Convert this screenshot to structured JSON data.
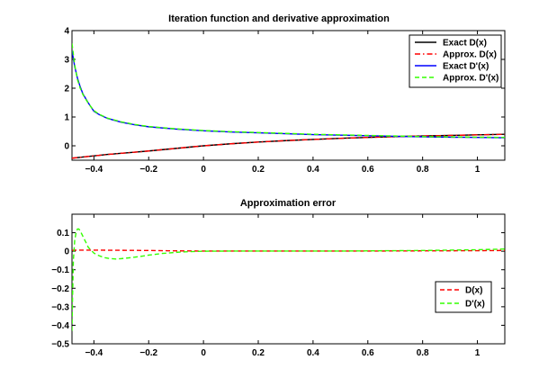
{
  "chart_data": [
    {
      "type": "line",
      "title": "Iteration function and derivative approximation",
      "xlabel": "",
      "ylabel": "",
      "xlim": [
        -0.48,
        1.1
      ],
      "ylim": [
        -0.5,
        4
      ],
      "x_ticks": [
        -0.4,
        -0.2,
        0,
        0.2,
        0.4,
        0.6,
        0.8,
        1
      ],
      "x_tick_labels": [
        "−0.4",
        "−0.2",
        "0",
        "0.2",
        "0.4",
        "0.6",
        "0.8",
        "1"
      ],
      "y_ticks": [
        0,
        1,
        2,
        3,
        4
      ],
      "y_tick_labels": [
        "0",
        "1",
        "2",
        "3",
        "4"
      ],
      "grid": false,
      "legend_position": "top-right",
      "x": [
        -0.48,
        -0.47,
        -0.46,
        -0.45,
        -0.44,
        -0.42,
        -0.4,
        -0.38,
        -0.35,
        -0.3,
        -0.25,
        -0.2,
        -0.1,
        0,
        0.1,
        0.2,
        0.3,
        0.4,
        0.5,
        0.6,
        0.7,
        0.8,
        0.9,
        1.0,
        1.1
      ],
      "series": [
        {
          "name": "Exact D(x)",
          "color": "#000000",
          "dash": "solid",
          "values": [
            -0.43,
            -0.42,
            -0.41,
            -0.4,
            -0.39,
            -0.37,
            -0.35,
            -0.33,
            -0.3,
            -0.26,
            -0.22,
            -0.18,
            -0.09,
            0,
            0.07,
            0.13,
            0.18,
            0.22,
            0.26,
            0.29,
            0.32,
            0.34,
            0.36,
            0.38,
            0.4
          ]
        },
        {
          "name": "Approx. D(x)",
          "color": "#ff0000",
          "dash": "dashdot",
          "values": [
            -0.43,
            -0.42,
            -0.41,
            -0.4,
            -0.39,
            -0.37,
            -0.35,
            -0.33,
            -0.3,
            -0.26,
            -0.22,
            -0.18,
            -0.09,
            0,
            0.07,
            0.13,
            0.18,
            0.22,
            0.26,
            0.29,
            0.32,
            0.34,
            0.36,
            0.38,
            0.4
          ]
        },
        {
          "name": "Exact D'(x)",
          "color": "#0000ff",
          "dash": "solid",
          "values": [
            3.3,
            2.75,
            2.35,
            2.05,
            1.8,
            1.48,
            1.2,
            1.08,
            0.95,
            0.82,
            0.73,
            0.66,
            0.58,
            0.52,
            0.48,
            0.45,
            0.42,
            0.39,
            0.37,
            0.35,
            0.33,
            0.31,
            0.3,
            0.29,
            0.28
          ]
        },
        {
          "name": "Approx. D'(x)",
          "color": "#33ff00",
          "dash": "dashed",
          "values": [
            3.55,
            2.8,
            2.3,
            2.0,
            1.78,
            1.47,
            1.22,
            1.09,
            0.96,
            0.83,
            0.74,
            0.67,
            0.59,
            0.53,
            0.49,
            0.46,
            0.43,
            0.4,
            0.38,
            0.36,
            0.34,
            0.32,
            0.31,
            0.3,
            0.29
          ]
        }
      ]
    },
    {
      "type": "line",
      "title": "Approximation error",
      "xlabel": "",
      "ylabel": "",
      "xlim": [
        -0.48,
        1.1
      ],
      "ylim": [
        -0.5,
        0.2
      ],
      "x_ticks": [
        -0.4,
        -0.2,
        0,
        0.2,
        0.4,
        0.6,
        0.8,
        1
      ],
      "x_tick_labels": [
        "−0.4",
        "−0.2",
        "0",
        "0.2",
        "0.4",
        "0.6",
        "0.8",
        "1"
      ],
      "y_ticks": [
        -0.5,
        -0.4,
        -0.3,
        -0.2,
        -0.1,
        0,
        0.1
      ],
      "y_tick_labels": [
        "−0.5",
        "−0.4",
        "−0.3",
        "−0.2",
        "−0.1",
        "0",
        "0.1"
      ],
      "grid": false,
      "legend_position": "bottom-right",
      "series": [
        {
          "name": "D(x)",
          "color": "#ff0000",
          "dash": "dashed",
          "x": [
            -0.48,
            -0.45,
            -0.4,
            -0.3,
            -0.2,
            -0.1,
            0,
            0.2,
            0.4,
            0.6,
            0.8,
            1.0,
            1.1
          ],
          "values": [
            0.005,
            0.006,
            0.006,
            0.005,
            0.004,
            0.002,
            0.001,
            0.001,
            0.001,
            0.001,
            0.002,
            0.003,
            0.004
          ]
        },
        {
          "name": "D'(x)",
          "color": "#33ff00",
          "dash": "dashed",
          "x": [
            -0.48,
            -0.478,
            -0.475,
            -0.47,
            -0.465,
            -0.46,
            -0.455,
            -0.45,
            -0.44,
            -0.43,
            -0.42,
            -0.4,
            -0.38,
            -0.36,
            -0.34,
            -0.32,
            -0.3,
            -0.28,
            -0.25,
            -0.22,
            -0.2,
            -0.15,
            -0.1,
            -0.05,
            0,
            0.1,
            0.2,
            0.3,
            0.4,
            0.5,
            0.6,
            0.7,
            0.8,
            0.9,
            1.0,
            1.05,
            1.1
          ],
          "values": [
            -0.43,
            -0.25,
            -0.05,
            0.06,
            0.1,
            0.12,
            0.12,
            0.11,
            0.08,
            0.05,
            0.02,
            -0.01,
            -0.025,
            -0.035,
            -0.04,
            -0.042,
            -0.04,
            -0.037,
            -0.032,
            -0.026,
            -0.021,
            -0.012,
            -0.006,
            -0.002,
            0,
            0.001,
            0.001,
            0.001,
            0.001,
            0.001,
            0.002,
            0.003,
            0.004,
            0.006,
            0.008,
            0.01,
            0.012
          ]
        }
      ]
    }
  ]
}
